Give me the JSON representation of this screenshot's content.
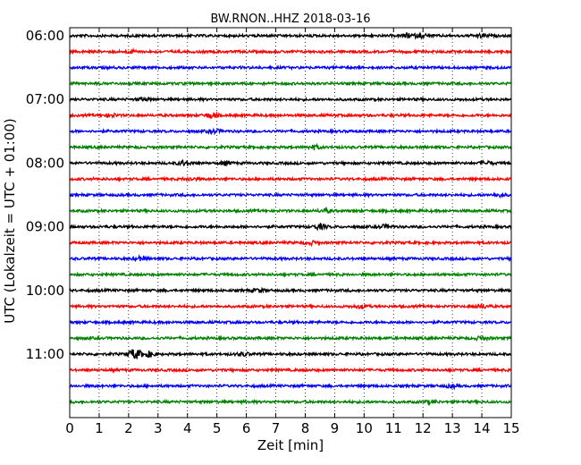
{
  "chart_data": {
    "type": "line",
    "title": "BW.RNON..HHZ 2018-03-16",
    "xlabel": "Zeit  [min]",
    "ylabel": "UTC (Lokalzeit = UTC + 01:00)",
    "xlim": [
      0,
      15
    ],
    "x_ticks": [
      "0",
      "1",
      "2",
      "3",
      "4",
      "5",
      "6",
      "7",
      "8",
      "9",
      "10",
      "11",
      "12",
      "13",
      "14",
      "15"
    ],
    "y_ticks": [
      "06:00",
      "07:00",
      "08:00",
      "09:00",
      "10:00",
      "11:00"
    ],
    "grid": "vertical dotted",
    "colors": [
      "#000000",
      "#ff0000",
      "#0000ff",
      "#008000"
    ],
    "traces": [
      {
        "start": "06:00",
        "color": "#000000",
        "events": [
          [
            11.5,
            2.2
          ],
          [
            12,
            1.8
          ],
          [
            14,
            1.6
          ]
        ]
      },
      {
        "start": "06:15",
        "color": "#ff0000",
        "events": [
          [
            2.1,
            1.4
          ]
        ]
      },
      {
        "start": "06:30",
        "color": "#0000ff",
        "events": []
      },
      {
        "start": "06:45",
        "color": "#008000",
        "events": []
      },
      {
        "start": "07:00",
        "color": "#000000",
        "events": [
          [
            2.5,
            1.4
          ]
        ]
      },
      {
        "start": "07:15",
        "color": "#ff0000",
        "events": [
          [
            1.4,
            1.5
          ],
          [
            4.8,
            2.4
          ]
        ]
      },
      {
        "start": "07:30",
        "color": "#0000ff",
        "events": [
          [
            4.9,
            1.9
          ]
        ]
      },
      {
        "start": "07:45",
        "color": "#008000",
        "events": [
          [
            8.3,
            2.0
          ]
        ]
      },
      {
        "start": "08:00",
        "color": "#000000",
        "events": [
          [
            3.9,
            2.6
          ],
          [
            5.3,
            1.8
          ],
          [
            14.2,
            1.6
          ]
        ]
      },
      {
        "start": "08:15",
        "color": "#ff0000",
        "events": [
          [
            4.1,
            1.4
          ]
        ]
      },
      {
        "start": "08:30",
        "color": "#0000ff",
        "events": [
          [
            14.6,
            1.4
          ]
        ]
      },
      {
        "start": "08:45",
        "color": "#008000",
        "events": [
          [
            8.7,
            1.5
          ]
        ]
      },
      {
        "start": "09:00",
        "color": "#000000",
        "events": [
          [
            8.5,
            2.4
          ],
          [
            10.7,
            1.6
          ]
        ]
      },
      {
        "start": "09:15",
        "color": "#ff0000",
        "events": [
          [
            8.2,
            1.4
          ]
        ]
      },
      {
        "start": "09:30",
        "color": "#0000ff",
        "events": [
          [
            2.4,
            1.8
          ]
        ]
      },
      {
        "start": "09:45",
        "color": "#008000",
        "events": []
      },
      {
        "start": "10:00",
        "color": "#000000",
        "events": [
          [
            6.4,
            1.4
          ]
        ]
      },
      {
        "start": "10:15",
        "color": "#ff0000",
        "events": [
          [
            9.9,
            1.7
          ],
          [
            14,
            2.0
          ]
        ]
      },
      {
        "start": "10:30",
        "color": "#0000ff",
        "events": []
      },
      {
        "start": "10:45",
        "color": "#008000",
        "events": [
          [
            14,
            1.5
          ]
        ]
      },
      {
        "start": "11:00",
        "color": "#000000",
        "events": [
          [
            2.2,
            5.5
          ],
          [
            2.7,
            2.8
          ],
          [
            5.9,
            1.6
          ]
        ]
      },
      {
        "start": "11:15",
        "color": "#ff0000",
        "events": []
      },
      {
        "start": "11:30",
        "color": "#0000ff",
        "events": [
          [
            13,
            1.4
          ]
        ]
      },
      {
        "start": "11:45",
        "color": "#008000",
        "events": [
          [
            12.3,
            1.3
          ]
        ]
      }
    ]
  }
}
